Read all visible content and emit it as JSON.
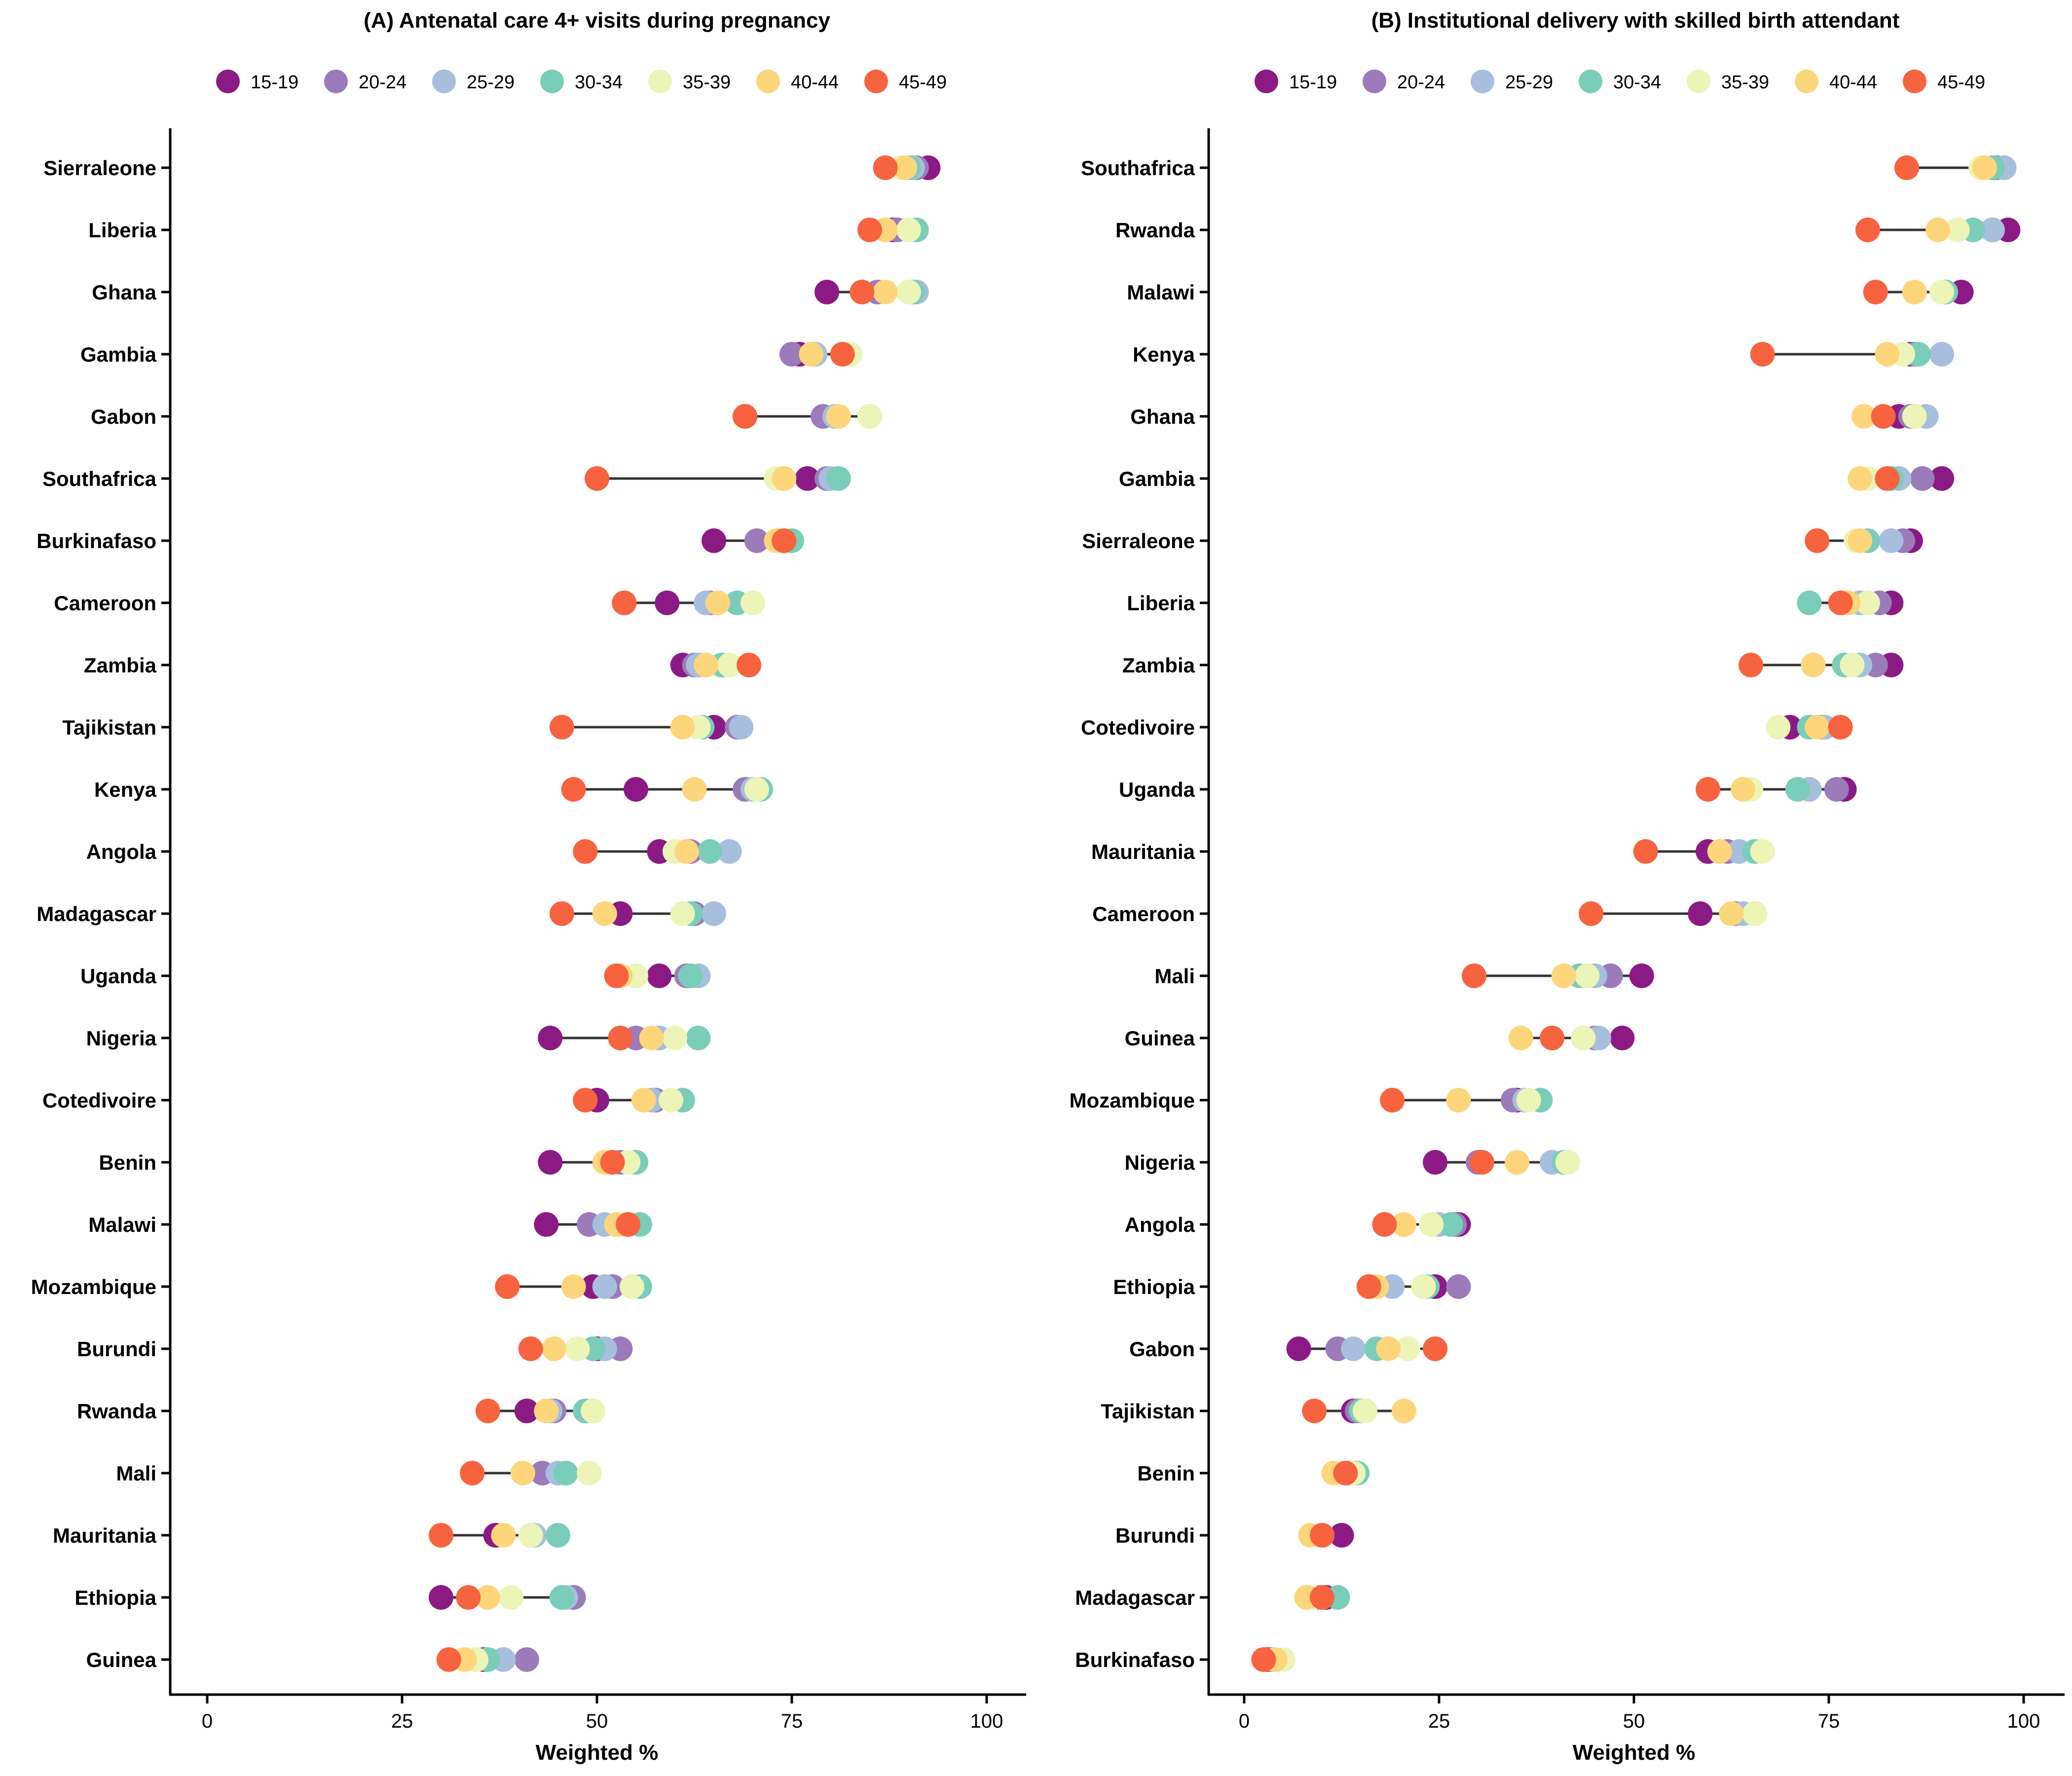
{
  "colors": {
    "15-19": "#8B1A84",
    "20-24": "#9B7BBA",
    "25-29": "#A7BFDD",
    "30-34": "#7ACDB9",
    "35-39": "#EDF4B7",
    "40-44": "#FDD67C",
    "45-49": "#F7633F"
  },
  "legend": [
    "15-19",
    "20-24",
    "25-29",
    "30-34",
    "35-39",
    "40-44",
    "45-49"
  ],
  "chart_data": [
    {
      "type": "dot-range",
      "title": "(A) Antenatal care 4+ visits during pregnancy",
      "xlabel": "Weighted %",
      "xlim": [
        -5,
        105
      ],
      "xticks": [
        "0",
        "25",
        "50",
        "75",
        "100"
      ],
      "categories": [
        "Sierraleone",
        "Liberia",
        "Ghana",
        "Gambia",
        "Gabon",
        "Southafrica",
        "Burkinafaso",
        "Cameroon",
        "Zambia",
        "Tajikistan",
        "Kenya",
        "Angola",
        "Madagascar",
        "Uganda",
        "Nigeria",
        "Cotedivoire",
        "Benin",
        "Malawi",
        "Mozambique",
        "Burundi",
        "Rwanda",
        "Mali",
        "Mauritania",
        "Ethiopia",
        "Guinea"
      ],
      "series": [
        {
          "name": "15-19",
          "values": [
            92.5,
            88,
            79.5,
            76,
            69,
            77,
            65,
            59,
            61,
            65,
            55,
            58,
            53,
            58,
            44,
            50,
            44,
            43.5,
            49.5,
            50,
            41,
            46,
            37,
            30,
            35.5
          ]
        },
        {
          "name": "20-24",
          "values": [
            91,
            88.5,
            86,
            75,
            79,
            79.5,
            70.5,
            64.5,
            62.5,
            68,
            69,
            62,
            62.5,
            61.5,
            55,
            57.5,
            53,
            49,
            52,
            53,
            44.5,
            43,
            41.5,
            47,
            41
          ]
        },
        {
          "name": "25-29",
          "values": [
            90.5,
            90,
            91,
            78,
            80.5,
            80,
            74,
            64,
            63,
            68.5,
            70,
            67,
            65,
            63,
            58,
            57,
            55,
            51,
            51,
            51,
            44,
            45,
            42,
            46,
            38
          ]
        },
        {
          "name": "30-34",
          "values": [
            90,
            91,
            90.5,
            77.5,
            85,
            81,
            75,
            68,
            66,
            63.5,
            71,
            64.5,
            62,
            62,
            63,
            61,
            55,
            55.5,
            55.5,
            49.5,
            48.5,
            46,
            45,
            45.5,
            36
          ]
        },
        {
          "name": "35-39",
          "values": [
            89,
            90,
            90,
            82.5,
            85,
            73,
            73.5,
            70,
            67,
            63,
            70.5,
            60,
            61,
            55,
            60,
            59.5,
            54,
            53,
            54.5,
            47.5,
            49.5,
            49,
            41.5,
            39,
            34.5
          ]
        },
        {
          "name": "40-44",
          "values": [
            89.5,
            87,
            87,
            77.5,
            81,
            74,
            73,
            65.5,
            64,
            61,
            62.5,
            61.5,
            51,
            53,
            57,
            56,
            51,
            52.5,
            47,
            44.5,
            43.5,
            40.5,
            38,
            36,
            33
          ]
        },
        {
          "name": "45-49",
          "values": [
            87,
            85,
            84,
            81.5,
            69,
            50,
            74,
            53.5,
            69.5,
            45.5,
            47,
            48.5,
            45.5,
            52.5,
            53,
            48.5,
            52,
            54,
            38.5,
            41.5,
            36,
            34,
            30,
            33.5,
            31
          ]
        }
      ]
    },
    {
      "type": "dot-range",
      "title": "(B) Institutional delivery with skilled birth attendant",
      "xlabel": "Weighted %",
      "xlim": [
        -5,
        105
      ],
      "xticks": [
        "0",
        "25",
        "50",
        "75",
        "100"
      ],
      "categories": [
        "Southafrica",
        "Rwanda",
        "Malawi",
        "Kenya",
        "Ghana",
        "Gambia",
        "Sierraleone",
        "Liberia",
        "Zambia",
        "Cotedivoire",
        "Uganda",
        "Mauritania",
        "Cameroon",
        "Mali",
        "Guinea",
        "Mozambique",
        "Nigeria",
        "Angola",
        "Ethiopia",
        "Gabon",
        "Tajikistan",
        "Benin",
        "Burundi",
        "Madagascar",
        "Burkinafaso"
      ],
      "series": [
        {
          "name": "15-19",
          "values": [
            96,
            98,
            92,
            85.5,
            84,
            89.5,
            85.5,
            83,
            83,
            70,
            77,
            59.5,
            58.5,
            51,
            48.5,
            35,
            24.5,
            27.5,
            24.5,
            7,
            14,
            13.5,
            12.5,
            10.5,
            3
          ]
        },
        {
          "name": "20-24",
          "values": [
            96.5,
            96,
            90,
            86,
            85.5,
            87,
            84.5,
            81.5,
            81,
            74,
            76,
            62,
            63,
            47,
            45,
            34.5,
            30,
            27,
            27.5,
            12,
            14.5,
            14,
            10,
            9.5,
            3.5
          ]
        },
        {
          "name": "25-29",
          "values": [
            97.5,
            96,
            90,
            89.5,
            87.5,
            84,
            83,
            79,
            79,
            74.5,
            72.5,
            63.5,
            64,
            45,
            45.5,
            36,
            39.5,
            25,
            19,
            14,
            15.5,
            13.5,
            10,
            10,
            4
          ]
        },
        {
          "name": "30-34",
          "values": [
            96,
            93.5,
            90,
            86.5,
            86,
            83,
            80,
            72.5,
            77,
            72.5,
            71,
            65.5,
            65.5,
            43,
            43.5,
            38,
            41,
            26.5,
            23.5,
            17,
            15,
            14.5,
            10,
            12,
            4
          ]
        },
        {
          "name": "35-39",
          "values": [
            94.5,
            91.5,
            89.5,
            84.5,
            86,
            80,
            78.5,
            80,
            78,
            68.5,
            65,
            66.5,
            65.5,
            44,
            43.5,
            36.5,
            41.5,
            24,
            23,
            21,
            15.5,
            14,
            10,
            9,
            5
          ]
        },
        {
          "name": "40-44",
          "values": [
            95,
            89,
            86,
            82.5,
            79.5,
            79,
            79,
            77.5,
            73,
            73.5,
            64,
            61,
            62.5,
            41,
            35.5,
            27.5,
            35,
            20.5,
            17,
            18.5,
            20.5,
            11.5,
            8.5,
            8,
            4
          ]
        },
        {
          "name": "45-49",
          "values": [
            85,
            80,
            81,
            66.5,
            82,
            82.5,
            73.5,
            76.5,
            65,
            76.5,
            59.5,
            51.5,
            44.5,
            29.5,
            39.5,
            19,
            30.5,
            18,
            16,
            24.5,
            9,
            13,
            10,
            10,
            2.5
          ]
        }
      ]
    }
  ]
}
